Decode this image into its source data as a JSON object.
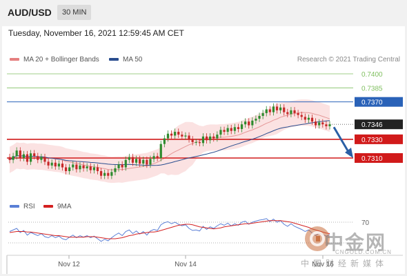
{
  "header": {
    "symbol": "AUD/USD",
    "timeframe": "30 MIN"
  },
  "timestamp": "Tuesday, November 16, 2021 12:59:45 AM CET",
  "legend": {
    "ma20": {
      "label": "MA 20 + Bollinger Bands",
      "color": "#e57f7f"
    },
    "ma50": {
      "label": "MA 50",
      "color": "#2a4d8f"
    },
    "credit": "Research © 2021 Trading Central"
  },
  "price_levels": [
    {
      "value": 0.74,
      "label": "0.7400",
      "style": "green-thin"
    },
    {
      "value": 0.7385,
      "label": "0.7385",
      "style": "green-thin"
    },
    {
      "value": 0.737,
      "label": "0.7370",
      "style": "blue-box"
    },
    {
      "value": 0.7346,
      "label": "0.7346",
      "style": "current-box"
    },
    {
      "value": 0.733,
      "label": "0.7330",
      "style": "red-box"
    },
    {
      "value": 0.731,
      "label": "0.7310",
      "style": "red-box"
    }
  ],
  "rsi_legend": {
    "rsi": {
      "label": "RSI",
      "color": "#5a7fd6"
    },
    "ma9": {
      "label": "9MA",
      "color": "#d42020"
    },
    "level_label": "70"
  },
  "x_axis": {
    "ticks": [
      "Nov 12",
      "Nov 14",
      "Nov 16"
    ]
  },
  "watermark": {
    "cn": "中金网",
    "en": "CNGOLD.COM.CN",
    "sub": "中国财经新媒体"
  },
  "colors": {
    "up": "#2e8b2e",
    "down": "#c62828",
    "resistance_green": "#7fbf5f",
    "resistance_blue": "#2a62b8",
    "support_red": "#d11a1a",
    "arrow": "#2a5fa5"
  },
  "chart_data": {
    "type": "candlestick",
    "ylim": [
      0.7273,
      0.741
    ],
    "close": [
      0.7308,
      0.7312,
      0.7318,
      0.731,
      0.7314,
      0.7306,
      0.7315,
      0.7312,
      0.7308,
      0.7311,
      0.7306,
      0.7302,
      0.7305,
      0.7301,
      0.7304,
      0.73,
      0.7296,
      0.73,
      0.7303,
      0.7298,
      0.7302,
      0.7299,
      0.7301,
      0.7297,
      0.73,
      0.7296,
      0.7291,
      0.7294,
      0.7291,
      0.7295,
      0.7299,
      0.7303,
      0.73,
      0.7308,
      0.7311,
      0.7305,
      0.7309,
      0.7304,
      0.7308,
      0.7303,
      0.7309,
      0.7312,
      0.731,
      0.7325,
      0.7331,
      0.7336,
      0.7334,
      0.7338,
      0.7335,
      0.7333,
      0.7334,
      0.733,
      0.7327,
      0.7327,
      0.7326,
      0.7333,
      0.7329,
      0.7333,
      0.7331,
      0.7335,
      0.734,
      0.7338,
      0.7342,
      0.7339,
      0.7343,
      0.7341,
      0.7346,
      0.7349,
      0.7345,
      0.735,
      0.7352,
      0.7355,
      0.7358,
      0.7362,
      0.7359,
      0.7365,
      0.7361,
      0.7364,
      0.7359,
      0.7357,
      0.7361,
      0.7358,
      0.7356,
      0.7354,
      0.7351,
      0.7353,
      0.7349,
      0.7345,
      0.7348,
      0.7346,
      0.7344,
      0.7346
    ],
    "rsi": [
      52,
      55,
      58,
      50,
      54,
      45,
      50,
      47,
      44,
      48,
      42,
      40,
      44,
      40,
      43,
      38,
      36,
      41,
      45,
      40,
      44,
      41,
      44,
      40,
      43,
      38,
      33,
      37,
      34,
      40,
      45,
      49,
      44,
      52,
      55,
      48,
      53,
      47,
      52,
      45,
      53,
      56,
      54,
      65,
      69,
      71,
      67,
      70,
      66,
      63,
      65,
      58,
      54,
      55,
      53,
      62,
      56,
      61,
      58,
      63,
      67,
      64,
      68,
      63,
      67,
      64,
      70,
      72,
      66,
      70,
      72,
      74,
      75,
      77,
      71,
      76,
      70,
      73,
      66,
      62,
      67,
      62,
      59,
      56,
      52,
      55,
      49,
      44,
      49,
      46,
      43,
      46
    ],
    "rsi_ma9": [
      50,
      51,
      52,
      52,
      52,
      51,
      51,
      50,
      49,
      48,
      47,
      46,
      45,
      44,
      44,
      43,
      42,
      41,
      41,
      41,
      41,
      41,
      42,
      42,
      42,
      41,
      40,
      39,
      38,
      38,
      38,
      39,
      40,
      42,
      44,
      45,
      47,
      48,
      49,
      50,
      51,
      51,
      52,
      54,
      56,
      58,
      60,
      62,
      64,
      65,
      66,
      66,
      65,
      63,
      61,
      60,
      59,
      58,
      57,
      58,
      59,
      61,
      62,
      63,
      64,
      65,
      66,
      67,
      67,
      68,
      69,
      70,
      71,
      72,
      73,
      73,
      73,
      73,
      72,
      71,
      70,
      68,
      66,
      64,
      62,
      60,
      57,
      55,
      53,
      51,
      49,
      48
    ]
  }
}
